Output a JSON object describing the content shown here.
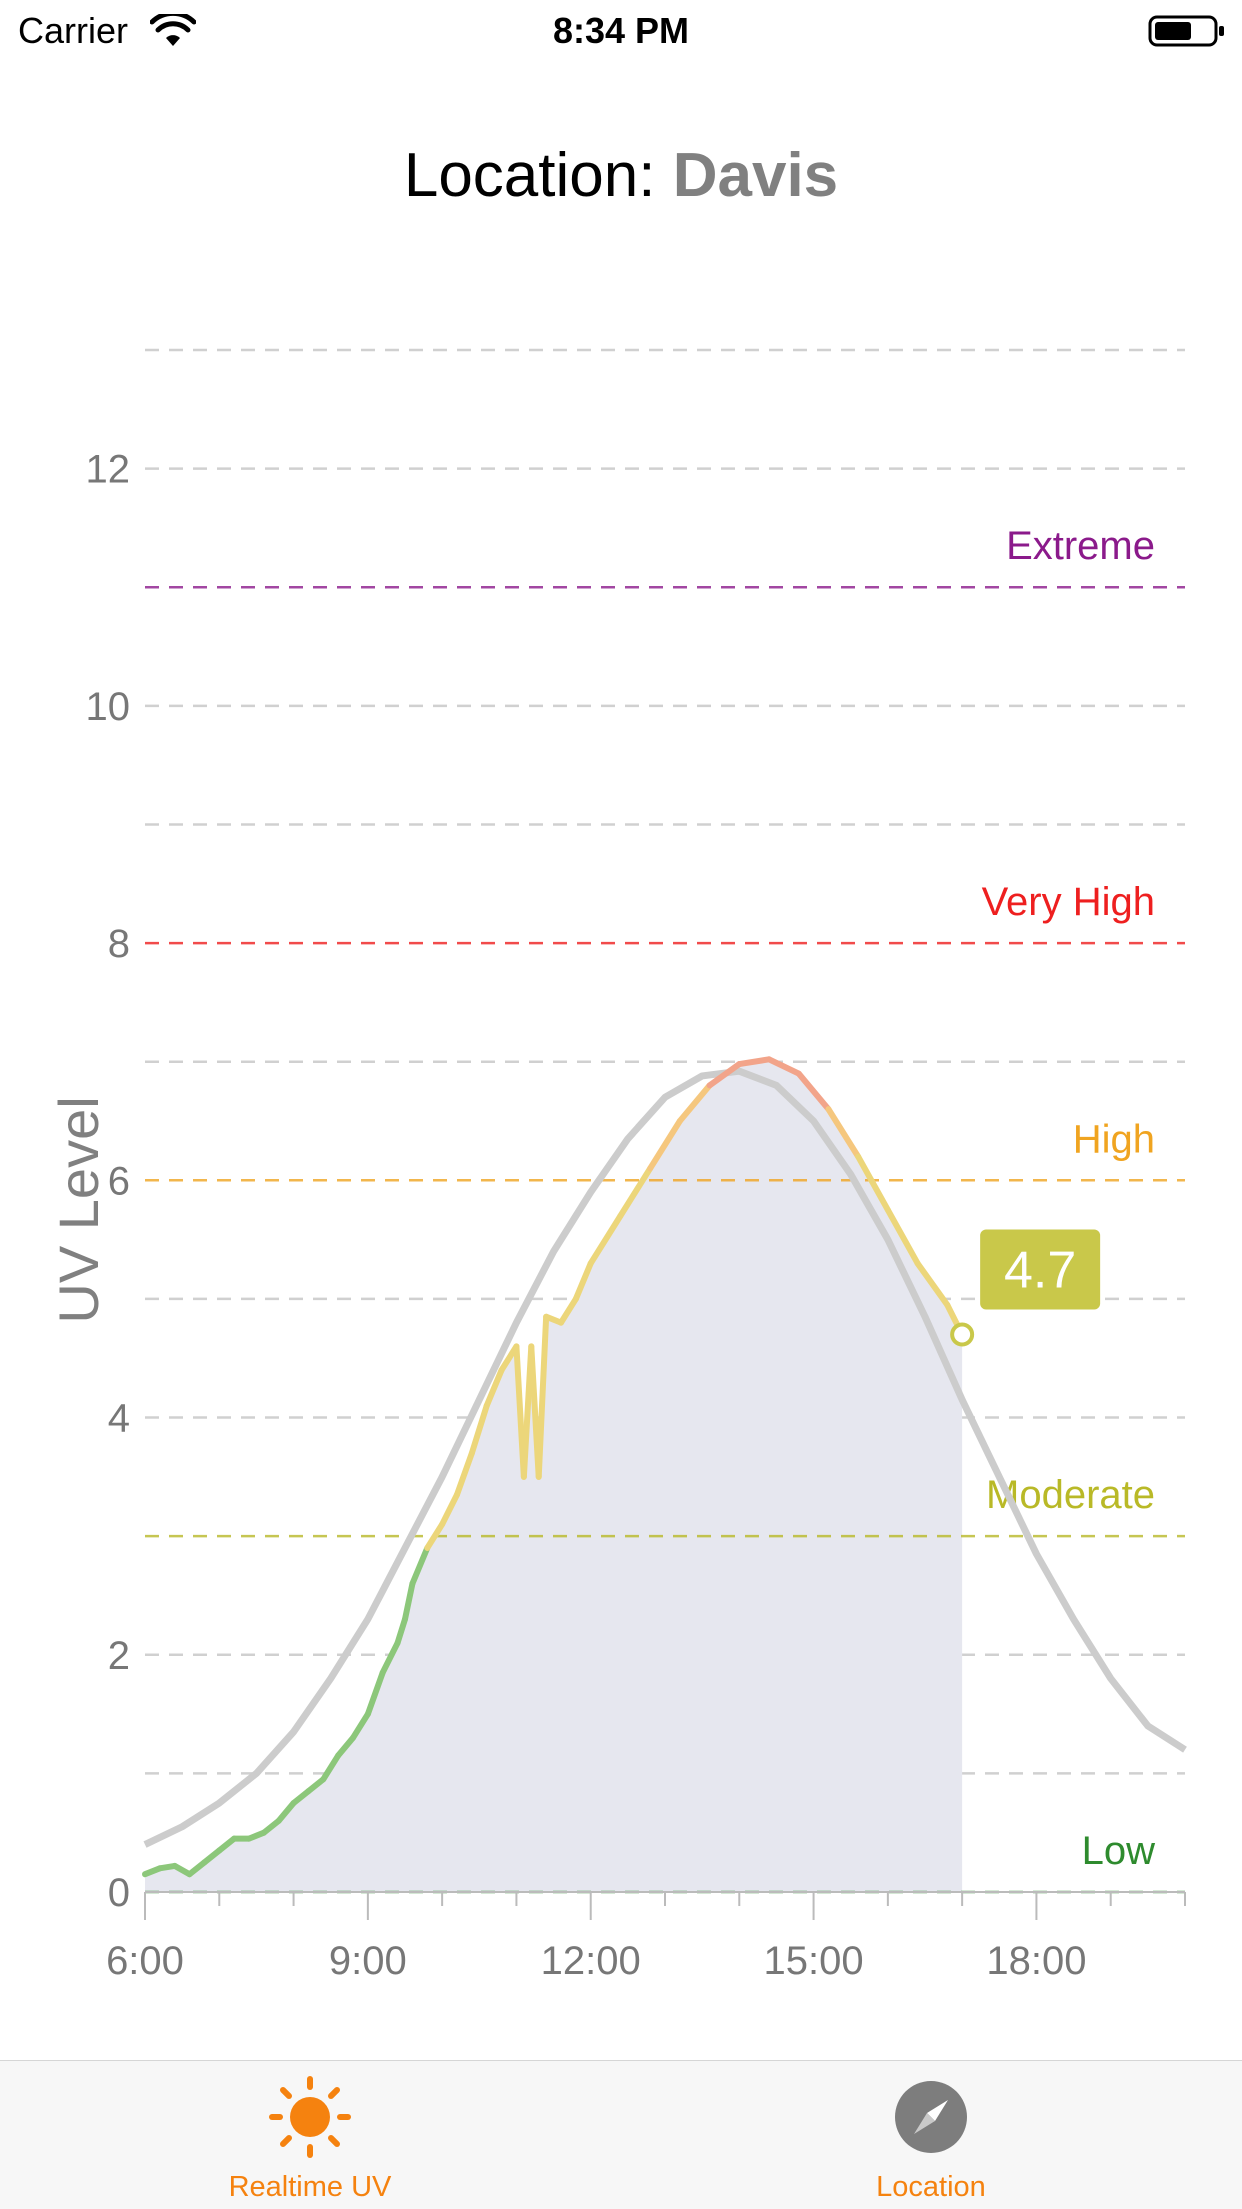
{
  "status_bar": {
    "carrier": "Carrier",
    "time": "8:34 PM"
  },
  "header": {
    "title_prefix": "Location: ",
    "location_name": "Davis"
  },
  "chart_data": {
    "type": "line",
    "ylabel": "UV Level",
    "xlabel": "",
    "ylim": [
      0,
      13
    ],
    "y_ticks": [
      0,
      2,
      4,
      6,
      8,
      10,
      12
    ],
    "x_range_hours": [
      6,
      20
    ],
    "x_ticks": [
      {
        "hour": 6,
        "label": "6:00"
      },
      {
        "hour": 9,
        "label": "9:00"
      },
      {
        "hour": 12,
        "label": "12:00"
      },
      {
        "hour": 15,
        "label": "15:00"
      },
      {
        "hour": 18,
        "label": "18:00"
      }
    ],
    "grid": "horizontal dashed every 1 unit",
    "thresholds": [
      {
        "name": "Low",
        "value": 0,
        "color": "#2e8b2e"
      },
      {
        "name": "Moderate",
        "value": 3,
        "color": "#b9b927"
      },
      {
        "name": "High",
        "value": 6,
        "color": "#f0a420"
      },
      {
        "name": "Very High",
        "value": 8,
        "color": "#ee1f1f"
      },
      {
        "name": "Extreme",
        "value": 11,
        "color": "#8b1a8b"
      }
    ],
    "series": [
      {
        "role": "forecast",
        "color": "#cccccc",
        "x": [
          6,
          6.5,
          7,
          7.5,
          8,
          8.5,
          9,
          9.5,
          10,
          10.5,
          11,
          11.5,
          12,
          12.5,
          13,
          13.5,
          14,
          14.5,
          15,
          15.5,
          16,
          16.5,
          17,
          17.5,
          18,
          18.5,
          19,
          19.5,
          20
        ],
        "y": [
          0.4,
          0.55,
          0.75,
          1.0,
          1.35,
          1.8,
          2.3,
          2.9,
          3.5,
          4.15,
          4.8,
          5.4,
          5.9,
          6.35,
          6.7,
          6.88,
          6.92,
          6.8,
          6.5,
          6.05,
          5.5,
          4.85,
          4.15,
          3.5,
          2.85,
          2.3,
          1.8,
          1.4,
          1.2
        ]
      },
      {
        "role": "measured",
        "x": [
          6,
          6.2,
          6.4,
          6.6,
          6.8,
          7,
          7.2,
          7.4,
          7.6,
          7.8,
          8,
          8.2,
          8.4,
          8.6,
          8.8,
          9,
          9.2,
          9.4,
          9.5,
          9.6,
          9.8,
          10,
          10.2,
          10.4,
          10.6,
          10.8,
          11,
          11.1,
          11.2,
          11.3,
          11.4,
          11.6,
          11.8,
          12,
          12.4,
          12.8,
          13.2,
          13.6,
          14,
          14.4,
          14.8,
          15.2,
          15.6,
          16,
          16.4,
          16.8,
          17
        ],
        "y": [
          0.15,
          0.2,
          0.22,
          0.15,
          0.25,
          0.35,
          0.45,
          0.45,
          0.5,
          0.6,
          0.75,
          0.85,
          0.95,
          1.15,
          1.3,
          1.5,
          1.85,
          2.1,
          2.3,
          2.6,
          2.9,
          3.1,
          3.35,
          3.7,
          4.1,
          4.4,
          4.6,
          3.5,
          4.6,
          3.5,
          4.85,
          4.8,
          5.0,
          5.3,
          5.7,
          6.1,
          6.5,
          6.8,
          6.98,
          7.02,
          6.9,
          6.6,
          6.2,
          5.75,
          5.3,
          4.95,
          4.7
        ]
      }
    ],
    "current_value": {
      "hour": 17,
      "value": 4.7,
      "label": "4.7",
      "color": "#c9c84a"
    },
    "area_fill_color": "#e6e7ef"
  },
  "tabs": [
    {
      "label": "Realtime UV",
      "icon": "sun-icon",
      "active": true
    },
    {
      "label": "Location",
      "icon": "compass-icon",
      "active": false
    }
  ],
  "colors": {
    "accent": "#f5820f",
    "tab_bar_bg": "#f7f7f7"
  }
}
